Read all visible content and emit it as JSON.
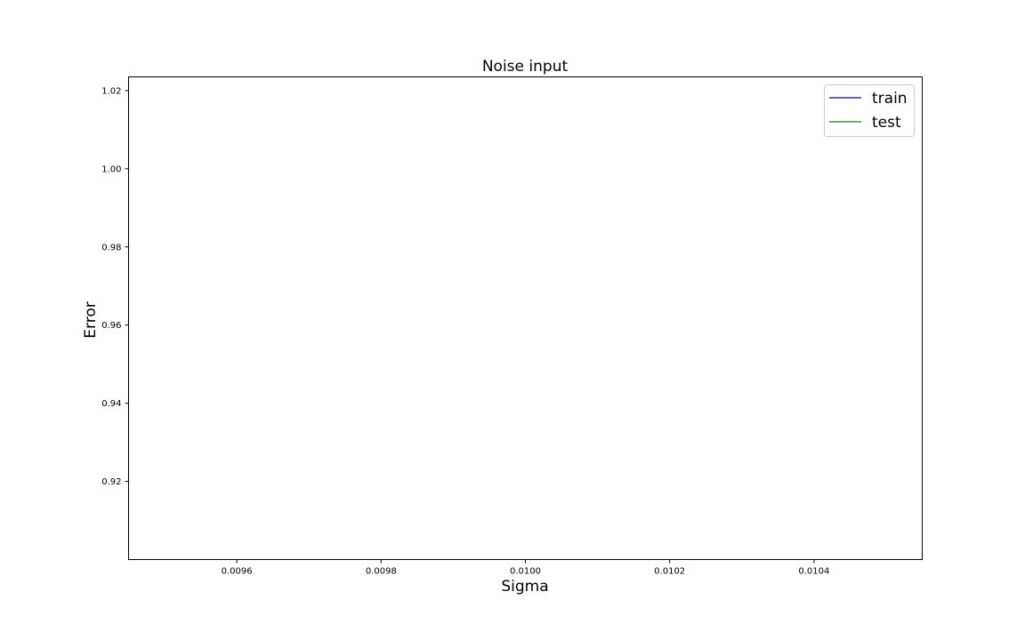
{
  "chart_data": {
    "type": "line",
    "title": "Noise input",
    "xlabel": "Sigma",
    "ylabel": "Error",
    "xlim": [
      0.00945,
      0.01055
    ],
    "ylim": [
      0.9,
      1.0235
    ],
    "xticks": [
      0.0096,
      0.0098,
      0.01,
      0.0102,
      0.0104
    ],
    "xtick_labels": [
      "0.0096",
      "0.0098",
      "0.0100",
      "0.0102",
      "0.0104"
    ],
    "yticks": [
      0.92,
      0.94,
      0.96,
      0.98,
      1.0,
      1.02
    ],
    "ytick_labels": [
      "0.92",
      "0.94",
      "0.96",
      "0.98",
      "1.00",
      "1.02"
    ],
    "grid": false,
    "legend_position": "top-right",
    "series": [
      {
        "name": "train",
        "color": "#2a2ac8",
        "x": [],
        "y": []
      },
      {
        "name": "test",
        "color": "#3a9a3a",
        "x": [],
        "y": []
      }
    ]
  }
}
